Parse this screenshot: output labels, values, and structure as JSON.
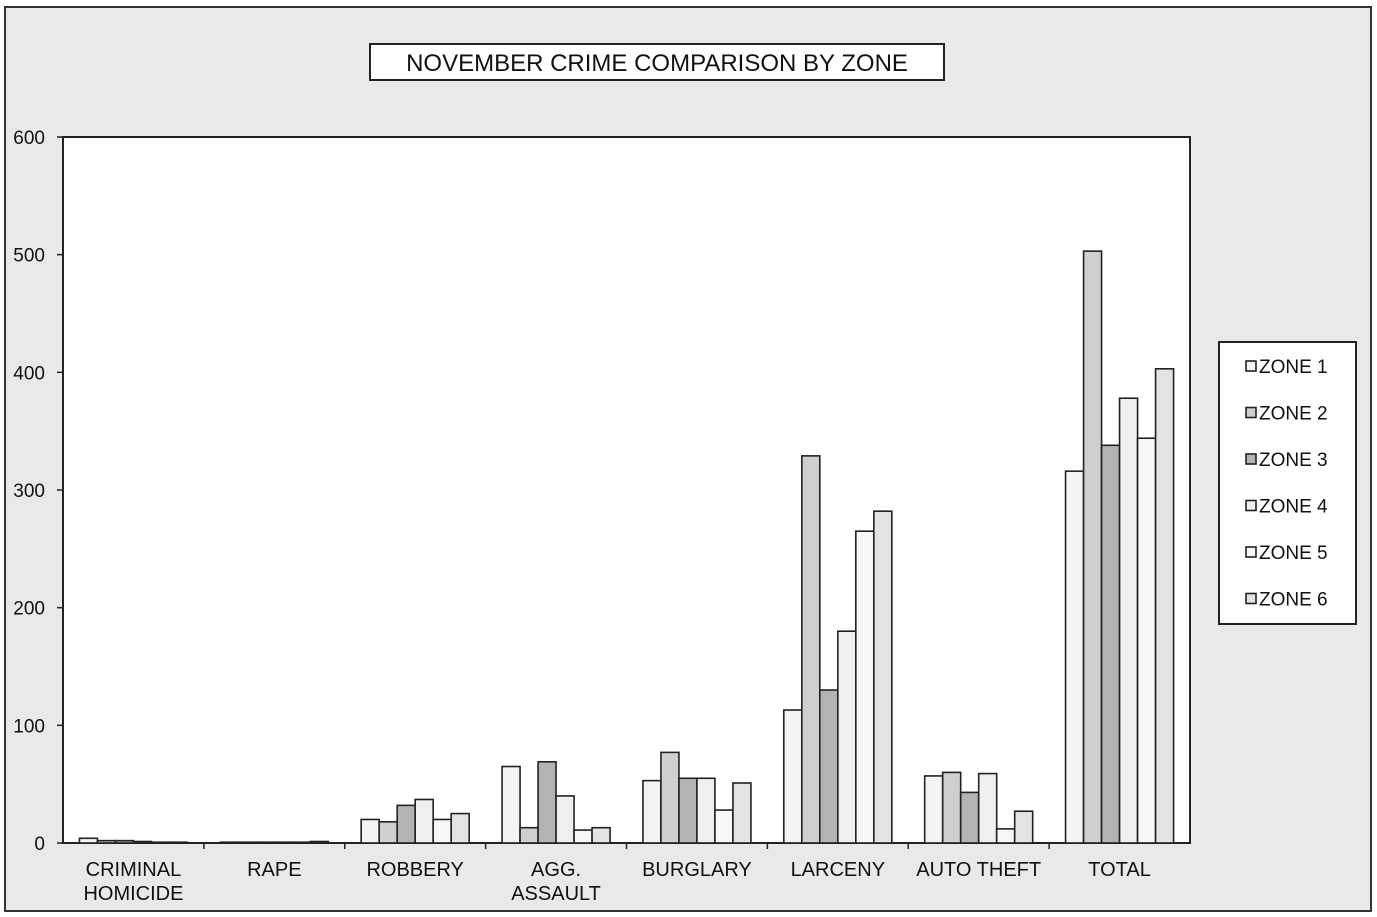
{
  "chart_data": {
    "type": "bar",
    "title": "NOVEMBER CRIME COMPARISON BY ZONE",
    "xlabel": "",
    "ylabel": "",
    "ylim": [
      0,
      600
    ],
    "yticks": [
      "0",
      "100",
      "200",
      "300",
      "400",
      "500",
      "600"
    ],
    "grid": false,
    "legend_position": "right",
    "categories": [
      [
        "CRIMINAL",
        "HOMICIDE"
      ],
      [
        "RAPE"
      ],
      [
        "ROBBERY"
      ],
      [
        "AGG.",
        "ASSAULT"
      ],
      [
        "BURGLARY"
      ],
      [
        "LARCENY"
      ],
      [
        "AUTO THEFT"
      ],
      [
        "TOTAL"
      ]
    ],
    "series": [
      {
        "name": "ZONE 1",
        "color": "#f4f4f4",
        "values": [
          4,
          0,
          20,
          65,
          53,
          113,
          57,
          316
        ]
      },
      {
        "name": "ZONE 2",
        "color": "#cfcfcf",
        "values": [
          2,
          0,
          18,
          13,
          77,
          329,
          60,
          503
        ]
      },
      {
        "name": "ZONE 3",
        "color": "#b3b3b3",
        "values": [
          2,
          0,
          32,
          69,
          55,
          130,
          43,
          338
        ]
      },
      {
        "name": "ZONE 4",
        "color": "#efefef",
        "values": [
          1,
          0,
          37,
          40,
          55,
          180,
          59,
          378
        ]
      },
      {
        "name": "ZONE 5",
        "color": "#f7f7f7",
        "values": [
          0,
          0,
          20,
          11,
          28,
          265,
          12,
          344
        ]
      },
      {
        "name": "ZONE 6",
        "color": "#e3e3e3",
        "values": [
          0,
          1,
          25,
          13,
          51,
          282,
          27,
          403
        ]
      }
    ]
  }
}
